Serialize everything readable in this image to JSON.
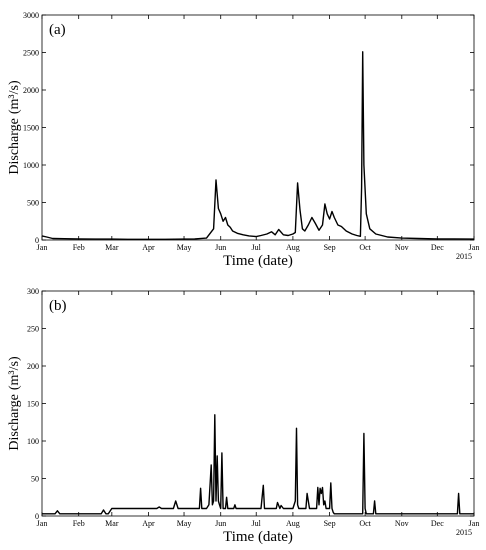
{
  "chart_data": [
    {
      "type": "line",
      "panel_label": "(a)",
      "xlabel": "Time (date)",
      "ylabel": "Discharge",
      "ylabel_unit": "(m³/s)",
      "ylim": [
        0,
        3000
      ],
      "yticks": [
        0,
        500,
        1000,
        1500,
        2000,
        2500,
        3000
      ],
      "xlim": [
        "2015-01-01",
        "2016-01-01"
      ],
      "xticks": [
        "Jan",
        "Feb",
        "Mar",
        "Apr",
        "May",
        "Jun",
        "Jul",
        "Aug",
        "Sep",
        "Oct",
        "Nov",
        "Dec",
        "Jan"
      ],
      "year_label": "2015",
      "series": [
        {
          "x": [
            "2015-01-01",
            "2015-01-05",
            "2015-01-10",
            "2015-01-20",
            "2015-02-01",
            "2015-02-15",
            "2015-03-01",
            "2015-03-15",
            "2015-04-01",
            "2015-04-15",
            "2015-05-01",
            "2015-05-10",
            "2015-05-20",
            "2015-05-26",
            "2015-05-28",
            "2015-05-30",
            "2015-06-01",
            "2015-06-03",
            "2015-06-05",
            "2015-06-07",
            "2015-06-09",
            "2015-06-11",
            "2015-06-15",
            "2015-06-20",
            "2015-06-25",
            "2015-07-01",
            "2015-07-05",
            "2015-07-10",
            "2015-07-14",
            "2015-07-17",
            "2015-07-20",
            "2015-07-24",
            "2015-07-28",
            "2015-08-01",
            "2015-08-03",
            "2015-08-05",
            "2015-08-07",
            "2015-08-09",
            "2015-08-11",
            "2015-08-14",
            "2015-08-17",
            "2015-08-20",
            "2015-08-23",
            "2015-08-26",
            "2015-08-28",
            "2015-08-30",
            "2015-09-01",
            "2015-09-03",
            "2015-09-05",
            "2015-09-08",
            "2015-09-11",
            "2015-09-15",
            "2015-09-20",
            "2015-09-24",
            "2015-09-27",
            "2015-09-28",
            "2015-09-29",
            "2015-09-30",
            "2015-10-02",
            "2015-10-05",
            "2015-10-10",
            "2015-10-20",
            "2015-11-01",
            "2015-11-15",
            "2015-12-01",
            "2015-12-15",
            "2016-01-01"
          ],
          "y": [
            55,
            40,
            20,
            18,
            15,
            12,
            12,
            10,
            10,
            10,
            12,
            15,
            25,
            150,
            800,
            420,
            350,
            250,
            300,
            200,
            170,
            120,
            90,
            70,
            55,
            45,
            60,
            80,
            110,
            70,
            140,
            70,
            60,
            80,
            100,
            760,
            400,
            150,
            120,
            200,
            300,
            220,
            130,
            200,
            480,
            350,
            280,
            380,
            300,
            200,
            180,
            120,
            80,
            60,
            50,
            700,
            2510,
            1000,
            350,
            150,
            80,
            40,
            25,
            20,
            15,
            15,
            12
          ]
        }
      ]
    },
    {
      "type": "line",
      "panel_label": "(b)",
      "xlabel": "Time (date)",
      "ylabel": "Discharge",
      "ylabel_unit": "(m³/s)",
      "ylim": [
        0,
        300
      ],
      "yticks": [
        0,
        50,
        100,
        150,
        200,
        250,
        300
      ],
      "xlim": [
        "2015-01-01",
        "2016-01-01"
      ],
      "xticks": [
        "Jan",
        "Feb",
        "Mar",
        "Apr",
        "May",
        "Jun",
        "Jul",
        "Aug",
        "Sep",
        "Oct",
        "Nov",
        "Dec",
        "Jan"
      ],
      "year_label": "2015",
      "series": [
        {
          "x": [
            "2015-01-01",
            "2015-01-12",
            "2015-01-14",
            "2015-01-16",
            "2015-02-01",
            "2015-02-20",
            "2015-02-22",
            "2015-02-24",
            "2015-02-26",
            "2015-03-01",
            "2015-03-03",
            "2015-03-05",
            "2015-03-20",
            "2015-04-01",
            "2015-04-08",
            "2015-04-10",
            "2015-04-12",
            "2015-04-22",
            "2015-04-24",
            "2015-04-26",
            "2015-05-05",
            "2015-05-14",
            "2015-05-15",
            "2015-05-16",
            "2015-05-20",
            "2015-05-22",
            "2015-05-24",
            "2015-05-25",
            "2015-05-26",
            "2015-05-27",
            "2015-05-28",
            "2015-05-29",
            "2015-05-30",
            "2015-05-31",
            "2015-06-01",
            "2015-06-02",
            "2015-06-03",
            "2015-06-04",
            "2015-06-05",
            "2015-06-06",
            "2015-06-07",
            "2015-06-08",
            "2015-06-12",
            "2015-06-13",
            "2015-06-14",
            "2015-06-20",
            "2015-06-25",
            "2015-06-26",
            "2015-06-27",
            "2015-07-05",
            "2015-07-07",
            "2015-07-08",
            "2015-07-09",
            "2015-07-15",
            "2015-07-18",
            "2015-07-19",
            "2015-07-21",
            "2015-07-22",
            "2015-07-24",
            "2015-07-27",
            "2015-08-01",
            "2015-08-03",
            "2015-08-04",
            "2015-08-05",
            "2015-08-06",
            "2015-08-08",
            "2015-08-12",
            "2015-08-13",
            "2015-08-15",
            "2015-08-18",
            "2015-08-21",
            "2015-08-22",
            "2015-08-23",
            "2015-08-24",
            "2015-08-25",
            "2015-08-26",
            "2015-08-27",
            "2015-08-28",
            "2015-08-29",
            "2015-08-30",
            "2015-09-01",
            "2015-09-02",
            "2015-09-03",
            "2015-09-04",
            "2015-09-05",
            "2015-09-10",
            "2015-09-20",
            "2015-09-29",
            "2015-09-30",
            "2015-10-01",
            "2015-10-02",
            "2015-10-08",
            "2015-10-09",
            "2015-10-10",
            "2015-10-11",
            "2015-10-20",
            "2015-11-01",
            "2015-11-15",
            "2015-12-01",
            "2015-12-18",
            "2015-12-19",
            "2015-12-20",
            "2015-12-22",
            "2016-01-01"
          ],
          "y": [
            3,
            3,
            7,
            3,
            3,
            3,
            8,
            3,
            3,
            10,
            10,
            10,
            10,
            10,
            10,
            12,
            10,
            10,
            20,
            10,
            10,
            10,
            37,
            10,
            10,
            15,
            68,
            15,
            20,
            135,
            20,
            80,
            20,
            15,
            10,
            84,
            10,
            10,
            10,
            25,
            10,
            10,
            10,
            15,
            10,
            10,
            10,
            10,
            10,
            10,
            41,
            10,
            10,
            10,
            10,
            18,
            10,
            14,
            10,
            10,
            10,
            20,
            117,
            15,
            10,
            10,
            10,
            30,
            10,
            10,
            10,
            38,
            15,
            37,
            30,
            38,
            15,
            20,
            10,
            10,
            10,
            44,
            10,
            5,
            3,
            3,
            3,
            3,
            110,
            10,
            3,
            3,
            20,
            3,
            3,
            3,
            3,
            3,
            3,
            3,
            30,
            3,
            3,
            3
          ]
        }
      ]
    }
  ]
}
